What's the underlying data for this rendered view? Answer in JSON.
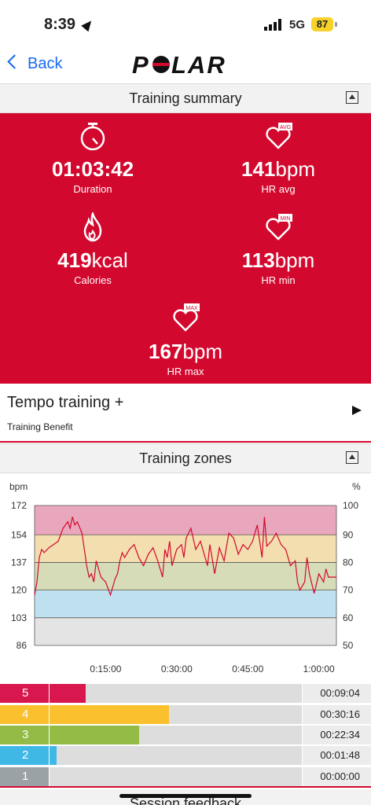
{
  "status": {
    "time": "8:39",
    "network": "5G",
    "battery": "87"
  },
  "nav": {
    "back_label": "Back",
    "logo_text": "POLAR"
  },
  "summary": {
    "header": "Training summary",
    "duration": {
      "value": "01:03:42",
      "label": "Duration"
    },
    "hr_avg": {
      "value": "141",
      "unit": "bpm",
      "label": "HR avg",
      "badge": "AVG"
    },
    "calories": {
      "value": "419",
      "unit": "kcal",
      "label": "Calories"
    },
    "hr_min": {
      "value": "113",
      "unit": "bpm",
      "label": "HR min",
      "badge": "MIN"
    },
    "hr_max": {
      "value": "167",
      "unit": "bpm",
      "label": "HR max",
      "badge": "MAX"
    }
  },
  "benefit": {
    "title": "Tempo training +",
    "subtitle": "Training Benefit"
  },
  "zones_section": {
    "header": "Training zones"
  },
  "chart_data": {
    "type": "line",
    "ylabel": "bpm",
    "y2label": "%",
    "y_ticks": [
      "172",
      "154",
      "137",
      "120",
      "103",
      "86"
    ],
    "y2_ticks": [
      "100",
      "90",
      "80",
      "70",
      "60",
      "50"
    ],
    "x_ticks": [
      "0:15:00",
      "0:30:00",
      "0:45:00",
      "1:00:00"
    ],
    "ylim": [
      86,
      172
    ],
    "xlim_min": [
      0,
      63.7
    ],
    "zone_bands": [
      {
        "zone": "5",
        "from": 154,
        "to": 172,
        "color": "#e9a7bd"
      },
      {
        "zone": "4",
        "from": 137,
        "to": 154,
        "color": "#f3deaf"
      },
      {
        "zone": "3",
        "from": 120,
        "to": 137,
        "color": "#d6dcb8"
      },
      {
        "zone": "2",
        "from": 103,
        "to": 120,
        "color": "#bfe1ef"
      },
      {
        "zone": "1",
        "from": 86,
        "to": 103,
        "color": "#e4e4e4"
      }
    ],
    "series": [
      {
        "color": "#d3082e",
        "x": [
          0,
          0.5,
          1,
          1.5,
          2,
          3,
          4,
          5,
          6,
          7,
          7.5,
          8,
          8.5,
          9,
          10,
          11,
          11.5,
          12,
          12.5,
          13,
          14,
          15,
          16,
          16.5,
          17,
          17.5,
          18,
          18.5,
          19,
          20,
          21,
          22,
          23,
          24,
          25,
          26,
          27,
          27.5,
          28,
          28.5,
          29,
          30,
          31,
          31.5,
          32,
          33,
          34,
          35,
          36,
          36.5,
          37,
          38,
          39,
          40,
          41,
          42,
          43,
          44,
          45,
          46,
          47,
          48,
          48.5,
          49,
          50,
          51,
          52,
          53,
          54,
          55,
          55.5,
          56,
          57,
          57.5,
          58,
          59,
          60,
          61,
          61.5,
          62,
          63,
          63.7
        ],
        "y": [
          117,
          125,
          140,
          145,
          143,
          146,
          148,
          150,
          158,
          162,
          158,
          165,
          160,
          162,
          155,
          135,
          128,
          130,
          125,
          138,
          128,
          125,
          117,
          122,
          127,
          130,
          138,
          143,
          140,
          145,
          148,
          140,
          135,
          142,
          146,
          138,
          128,
          145,
          140,
          150,
          135,
          145,
          148,
          140,
          152,
          158,
          145,
          150,
          140,
          135,
          148,
          130,
          146,
          138,
          155,
          152,
          142,
          148,
          145,
          150,
          160,
          140,
          165,
          147,
          150,
          155,
          148,
          145,
          135,
          138,
          125,
          120,
          125,
          140,
          130,
          118,
          130,
          125,
          133,
          128,
          128,
          128
        ]
      }
    ]
  },
  "zones": [
    {
      "num": "5",
      "time": "00:09:04",
      "fraction": 0.142,
      "color": "#d8174f"
    },
    {
      "num": "4",
      "time": "00:30:16",
      "fraction": 0.475,
      "color": "#fbc02d"
    },
    {
      "num": "3",
      "time": "00:22:34",
      "fraction": 0.354,
      "color": "#93bb45"
    },
    {
      "num": "2",
      "time": "00:01:48",
      "fraction": 0.028,
      "color": "#40b8e6"
    },
    {
      "num": "1",
      "time": "00:00:00",
      "fraction": 0.0,
      "color": "#9aa2a6"
    }
  ],
  "feedback": {
    "header": "Session feedback"
  }
}
